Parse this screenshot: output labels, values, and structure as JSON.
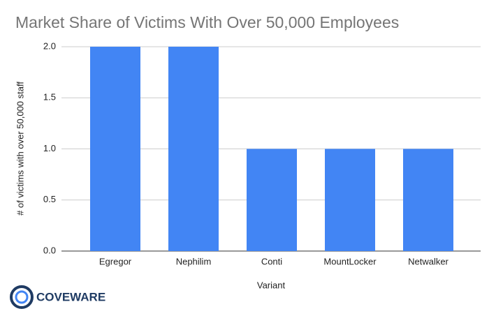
{
  "chart_data": {
    "type": "bar",
    "title": "Market Share of Victims With Over 50,000 Employees",
    "categories": [
      "Egregor",
      "Nephilim",
      "Conti",
      "MountLocker",
      "Netwalker"
    ],
    "values": [
      2,
      2,
      1,
      1,
      1
    ],
    "color": "#4285f4",
    "xlabel": "Variant",
    "ylabel": "# of victims with over 50,000 staff",
    "ylim": [
      0,
      2
    ],
    "yticks": [
      {
        "value": 0,
        "label": "0.0"
      },
      0.5,
      {
        "value": 1,
        "label": "1.0"
      },
      1.5,
      {
        "value": 2,
        "label": "2.0"
      }
    ],
    "grid": true
  },
  "logo": "COVEWARE"
}
